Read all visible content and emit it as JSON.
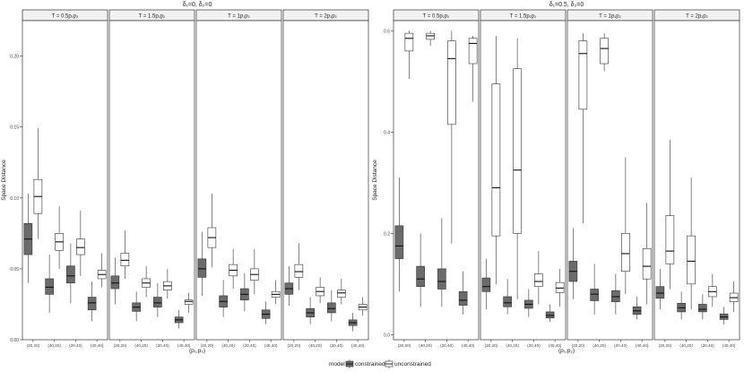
{
  "chart_data": [
    {
      "type": "boxplot",
      "title": "δ₁=0, δ₂=0",
      "xlabel": "(p₁,p₂)",
      "ylabel": "Space Distance",
      "ylim": [
        0,
        0.225
      ],
      "yticks": [
        "0.00",
        "0.05",
        "0.10",
        "0.15",
        "0.20"
      ],
      "grid": false,
      "categories": [
        "(20,20)",
        "(40,20)",
        "(20,40)",
        "(40,40)"
      ],
      "facets": [
        {
          "strip": "T = 0.5p₁p₂",
          "constrained": [
            [
              0.04,
              0.06,
              0.071,
              0.082,
              0.103
            ],
            [
              0.019,
              0.032,
              0.037,
              0.043,
              0.06
            ],
            [
              0.026,
              0.04,
              0.045,
              0.052,
              0.068
            ],
            [
              0.013,
              0.021,
              0.026,
              0.03,
              0.041
            ]
          ],
          "unconstrained": [
            [
              0.071,
              0.089,
              0.101,
              0.113,
              0.149
            ],
            [
              0.05,
              0.063,
              0.069,
              0.075,
              0.094
            ],
            [
              0.045,
              0.06,
              0.065,
              0.071,
              0.091
            ],
            [
              0.037,
              0.043,
              0.046,
              0.049,
              0.061
            ]
          ]
        },
        {
          "strip": "T = 1.5p₁p₂",
          "constrained": [
            [
              0.025,
              0.036,
              0.04,
              0.045,
              0.058
            ],
            [
              0.013,
              0.02,
              0.023,
              0.026,
              0.034
            ],
            [
              0.016,
              0.023,
              0.026,
              0.03,
              0.04
            ],
            [
              0.008,
              0.012,
              0.014,
              0.016,
              0.021
            ]
          ],
          "unconstrained": [
            [
              0.043,
              0.052,
              0.056,
              0.061,
              0.077
            ],
            [
              0.03,
              0.037,
              0.04,
              0.043,
              0.052
            ],
            [
              0.029,
              0.035,
              0.038,
              0.041,
              0.05
            ],
            [
              0.019,
              0.025,
              0.027,
              0.028,
              0.033
            ]
          ]
        },
        {
          "strip": "T = 1p₁p₂",
          "constrained": [
            [
              0.031,
              0.044,
              0.05,
              0.057,
              0.076
            ],
            [
              0.016,
              0.023,
              0.027,
              0.031,
              0.042
            ],
            [
              0.02,
              0.028,
              0.032,
              0.036,
              0.047
            ],
            [
              0.011,
              0.015,
              0.018,
              0.021,
              0.027
            ]
          ],
          "unconstrained": [
            [
              0.051,
              0.065,
              0.072,
              0.079,
              0.103
            ],
            [
              0.036,
              0.045,
              0.049,
              0.053,
              0.064
            ],
            [
              0.032,
              0.042,
              0.046,
              0.05,
              0.064
            ],
            [
              0.025,
              0.03,
              0.032,
              0.034,
              0.042
            ]
          ]
        },
        {
          "strip": "T = 2p₁p₂",
          "constrained": [
            [
              0.024,
              0.032,
              0.036,
              0.04,
              0.052
            ],
            [
              0.011,
              0.016,
              0.019,
              0.022,
              0.03
            ],
            [
              0.013,
              0.019,
              0.022,
              0.026,
              0.035
            ],
            [
              0.006,
              0.01,
              0.012,
              0.014,
              0.019
            ]
          ],
          "unconstrained": [
            [
              0.035,
              0.044,
              0.048,
              0.053,
              0.068
            ],
            [
              0.026,
              0.031,
              0.034,
              0.037,
              0.044
            ],
            [
              0.025,
              0.03,
              0.033,
              0.035,
              0.043
            ],
            [
              0.017,
              0.021,
              0.023,
              0.025,
              0.03
            ]
          ]
        }
      ]
    },
    {
      "type": "boxplot",
      "title": "δ₁=0.5, δ₂=0",
      "xlabel": "(p₁,p₂)",
      "ylabel": "Space Distance",
      "ylim": [
        -0.01,
        0.62
      ],
      "yticks": [
        "0.0",
        "0.2",
        "0.4",
        "0.6"
      ],
      "grid": false,
      "categories": [
        "(20,20)",
        "(40,20)",
        "(20,40)",
        "(40,40)"
      ],
      "facets": [
        {
          "strip": "T = 0.5p₁p₂",
          "constrained": [
            [
              0.085,
              0.15,
              0.175,
              0.215,
              0.31
            ],
            [
              0.055,
              0.095,
              0.11,
              0.135,
              0.2
            ],
            [
              0.055,
              0.09,
              0.105,
              0.13,
              0.23
            ],
            [
              0.04,
              0.058,
              0.068,
              0.085,
              0.125
            ]
          ],
          "unconstrained": [
            [
              0.505,
              0.56,
              0.585,
              0.595,
              0.6
            ],
            [
              0.57,
              0.583,
              0.59,
              0.595,
              0.6
            ],
            [
              0.18,
              0.415,
              0.545,
              0.58,
              0.6
            ],
            [
              0.46,
              0.535,
              0.575,
              0.585,
              0.59
            ]
          ]
        },
        {
          "strip": "T = 1.5p₁p₂",
          "constrained": [
            [
              0.05,
              0.085,
              0.095,
              0.112,
              0.15
            ],
            [
              0.04,
              0.055,
              0.063,
              0.075,
              0.11
            ],
            [
              0.035,
              0.052,
              0.06,
              0.068,
              0.09
            ],
            [
              0.025,
              0.033,
              0.038,
              0.045,
              0.06
            ]
          ],
          "unconstrained": [
            [
              0.1,
              0.195,
              0.29,
              0.495,
              0.59
            ],
            [
              0.07,
              0.2,
              0.325,
              0.525,
              0.585
            ],
            [
              0.06,
              0.095,
              0.105,
              0.12,
              0.165
            ],
            [
              0.055,
              0.083,
              0.092,
              0.103,
              0.13
            ]
          ]
        },
        {
          "strip": "T = 1p₁p₂",
          "constrained": [
            [
              0.07,
              0.105,
              0.125,
              0.145,
              0.21
            ],
            [
              0.04,
              0.067,
              0.08,
              0.09,
              0.14
            ],
            [
              0.04,
              0.065,
              0.075,
              0.087,
              0.12
            ],
            [
              0.03,
              0.04,
              0.047,
              0.055,
              0.075
            ]
          ],
          "unconstrained": [
            [
              0.22,
              0.445,
              0.555,
              0.58,
              0.595
            ],
            [
              0.52,
              0.535,
              0.565,
              0.585,
              0.595
            ],
            [
              0.08,
              0.125,
              0.16,
              0.2,
              0.35
            ],
            [
              0.06,
              0.11,
              0.135,
              0.17,
              0.26
            ]
          ]
        },
        {
          "strip": "T = 2p₁p₂",
          "constrained": [
            [
              0.05,
              0.072,
              0.082,
              0.095,
              0.13
            ],
            [
              0.03,
              0.045,
              0.053,
              0.062,
              0.085
            ],
            [
              0.03,
              0.045,
              0.05,
              0.06,
              0.08
            ],
            [
              0.02,
              0.03,
              0.035,
              0.041,
              0.055
            ]
          ],
          "unconstrained": [
            [
              0.09,
              0.14,
              0.165,
              0.235,
              0.385
            ],
            [
              0.05,
              0.1,
              0.145,
              0.195,
              0.31
            ],
            [
              0.055,
              0.075,
              0.085,
              0.095,
              0.12
            ],
            [
              0.045,
              0.065,
              0.073,
              0.082,
              0.105
            ]
          ]
        }
      ]
    }
  ],
  "legend": {
    "title": "model",
    "items": [
      {
        "label": "constrained",
        "fill": "#6b6b6b"
      },
      {
        "label": "unconstrained",
        "fill": "#ffffff"
      }
    ]
  },
  "colors": {
    "constrained_fill": "#6b6b6b",
    "unconstrained_fill": "#ffffff",
    "strip_fill": "#f2f2f2",
    "stroke": "#333333"
  }
}
